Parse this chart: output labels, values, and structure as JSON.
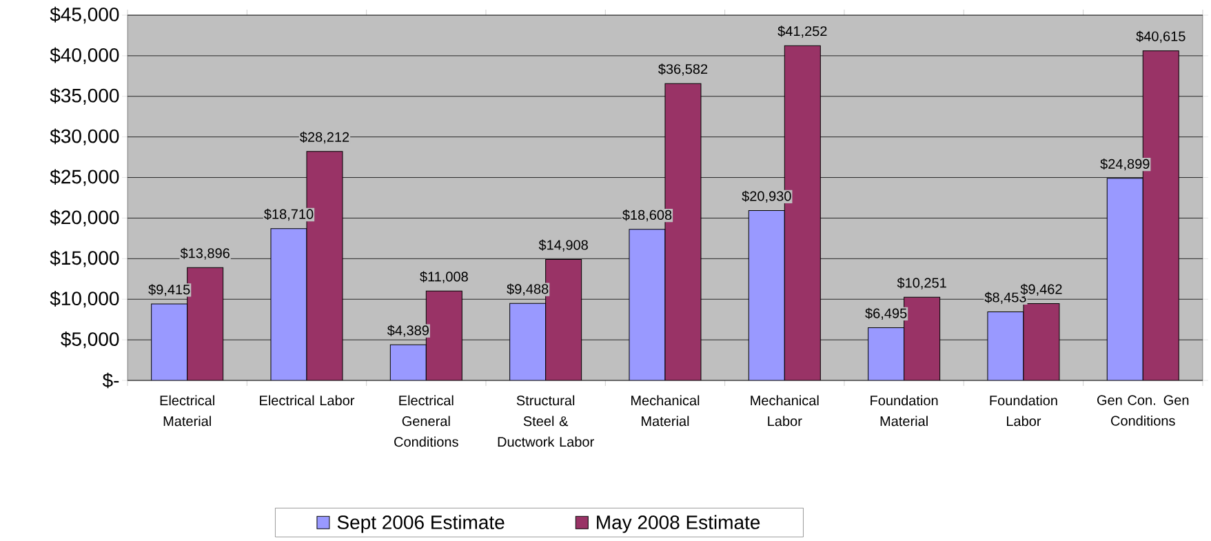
{
  "chart_data": {
    "type": "bar",
    "categories": [
      "Electrical Material",
      "Electrical Labor",
      "Electrical General Conditions",
      "Structural Steel & Ductwork Labor",
      "Mechanical Material",
      "Mechanical Labor",
      "Foundation Material",
      "Foundation Labor",
      "Gen Con. Gen Conditions"
    ],
    "series": [
      {
        "name": "Sept 2006 Estimate",
        "color": "#9999ff",
        "values": [
          9415,
          18710,
          4389,
          9488,
          18608,
          20930,
          6495,
          8453,
          24899
        ],
        "value_labels": [
          "$9,415",
          "$18,710",
          "$4,389",
          "$9,488",
          "$18,608",
          "$20,930",
          "$6,495",
          "$8,453",
          "$24,899"
        ]
      },
      {
        "name": "May 2008 Estimate",
        "color": "#993366",
        "values": [
          13896,
          28212,
          11008,
          14908,
          36582,
          41252,
          10251,
          9462,
          40615
        ],
        "value_labels": [
          "$13,896",
          "$28,212",
          "$11,008",
          "$14,908",
          "$36,582",
          "$41,252",
          "$10,251",
          "$9,462",
          "$40,615"
        ]
      }
    ],
    "ylim": [
      0,
      45000
    ],
    "yticks": [
      {
        "value": 0,
        "label": "$-"
      },
      {
        "value": 5000,
        "label": "$5,000"
      },
      {
        "value": 10000,
        "label": "$10,000"
      },
      {
        "value": 15000,
        "label": "$15,000"
      },
      {
        "value": 20000,
        "label": "$20,000"
      },
      {
        "value": 25000,
        "label": "$25,000"
      },
      {
        "value": 30000,
        "label": "$30,000"
      },
      {
        "value": 35000,
        "label": "$35,000"
      },
      {
        "value": 40000,
        "label": "$40,000"
      },
      {
        "value": 45000,
        "label": "$45,000"
      }
    ],
    "grid": "y",
    "legend": "bottom"
  }
}
